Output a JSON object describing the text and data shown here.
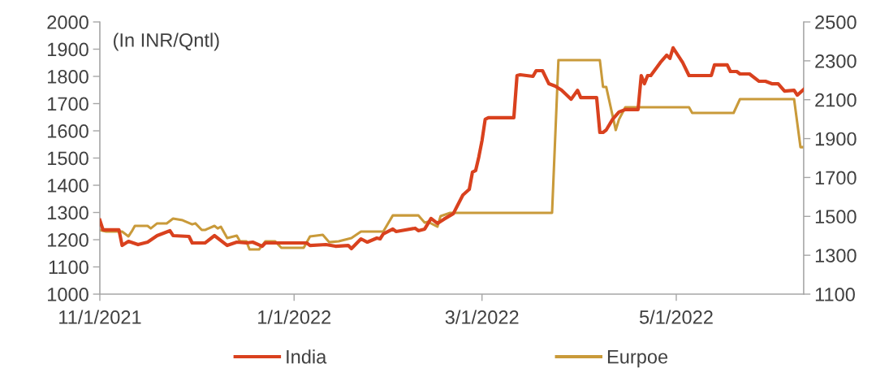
{
  "chart_data": {
    "type": "line",
    "annotations": [
      "(In INR/Qntl)"
    ],
    "xlim": [
      "2021-11-01",
      "2022-06-10"
    ],
    "xticks": [
      {
        "value": "2021-11-01",
        "label": "11/1/2021"
      },
      {
        "value": "2022-01-01",
        "label": "1/1/2022"
      },
      {
        "value": "2022-03-01",
        "label": "3/1/2022"
      },
      {
        "value": "2022-05-01",
        "label": "5/1/2022"
      }
    ],
    "ylim": [
      1000,
      2000
    ],
    "yticks": [
      1000,
      1100,
      1200,
      1300,
      1400,
      1500,
      1600,
      1700,
      1800,
      1900,
      2000
    ],
    "y2lim": [
      1100,
      2500
    ],
    "y2ticks": [
      1100,
      1300,
      1500,
      1700,
      1900,
      2100,
      2300,
      2500
    ],
    "grid": false,
    "legend": "bottom",
    "marker": "none",
    "line_style": "solid",
    "series": [
      {
        "name": "India",
        "color": "#d9411e",
        "x": [
          "2021-11-01",
          "2021-11-02",
          "2021-11-07",
          "2021-11-08",
          "2021-11-10",
          "2021-11-13",
          "2021-11-16",
          "2021-11-19",
          "2021-11-23",
          "2021-11-24",
          "2021-11-29",
          "2021-11-30",
          "2021-12-04",
          "2021-12-07",
          "2021-12-11",
          "2021-12-14",
          "2021-12-17",
          "2021-12-19",
          "2021-12-22",
          "2021-12-23",
          "2022-01-05",
          "2022-01-06",
          "2022-01-11",
          "2022-01-14",
          "2022-01-18",
          "2022-01-19",
          "2022-01-22",
          "2022-01-24",
          "2022-01-27",
          "2022-01-28",
          "2022-01-29",
          "2022-02-01",
          "2022-02-02",
          "2022-02-08",
          "2022-02-09",
          "2022-02-11",
          "2022-02-13",
          "2022-02-15",
          "2022-02-17",
          "2022-02-20",
          "2022-02-23",
          "2022-02-25",
          "2022-02-26",
          "2022-02-27",
          "2022-02-28",
          "2022-03-01",
          "2022-03-02",
          "2022-03-03",
          "2022-03-11",
          "2022-03-12",
          "2022-03-13",
          "2022-03-17",
          "2022-03-18",
          "2022-03-20",
          "2022-03-22",
          "2022-03-24",
          "2022-03-26",
          "2022-03-29",
          "2022-03-31",
          "2022-04-01",
          "2022-04-06",
          "2022-04-07",
          "2022-04-08",
          "2022-04-09",
          "2022-04-11",
          "2022-04-13",
          "2022-04-15",
          "2022-04-19",
          "2022-04-20",
          "2022-04-21",
          "2022-04-22",
          "2022-04-23",
          "2022-04-26",
          "2022-04-28",
          "2022-04-29",
          "2022-04-30",
          "2022-05-03",
          "2022-05-05",
          "2022-05-12",
          "2022-05-13",
          "2022-05-17",
          "2022-05-18",
          "2022-05-20",
          "2022-05-21",
          "2022-05-24",
          "2022-05-27",
          "2022-05-29",
          "2022-05-31",
          "2022-06-02",
          "2022-06-04",
          "2022-06-07",
          "2022-06-08",
          "2022-06-10"
        ],
        "values": [
          1272,
          1236,
          1236,
          1179,
          1194,
          1182,
          1191,
          1215,
          1233,
          1215,
          1212,
          1188,
          1188,
          1215,
          1179,
          1191,
          1188,
          1191,
          1176,
          1188,
          1188,
          1179,
          1182,
          1176,
          1179,
          1167,
          1203,
          1191,
          1206,
          1203,
          1221,
          1239,
          1230,
          1242,
          1233,
          1239,
          1278,
          1260,
          1275,
          1296,
          1364,
          1385,
          1448,
          1454,
          1504,
          1564,
          1642,
          1648,
          1648,
          1803,
          1806,
          1800,
          1821,
          1821,
          1773,
          1764,
          1749,
          1716,
          1749,
          1722,
          1722,
          1594,
          1594,
          1603,
          1642,
          1669,
          1678,
          1678,
          1803,
          1773,
          1803,
          1803,
          1851,
          1878,
          1866,
          1905,
          1851,
          1803,
          1803,
          1842,
          1842,
          1818,
          1818,
          1809,
          1809,
          1782,
          1782,
          1773,
          1773,
          1746,
          1749,
          1731,
          1752
        ]
      },
      {
        "name": "Eurpoe",
        "color": "#c99a3a",
        "axis": "y2",
        "x": [
          "2021-11-01",
          "2021-11-03",
          "2021-11-08",
          "2021-11-10",
          "2021-11-11",
          "2021-11-12",
          "2021-11-16",
          "2021-11-17",
          "2021-11-19",
          "2021-11-22",
          "2021-11-24",
          "2021-11-27",
          "2021-11-30",
          "2021-12-01",
          "2021-12-03",
          "2021-12-04",
          "2021-12-07",
          "2021-12-08",
          "2021-12-09",
          "2021-12-11",
          "2021-12-14",
          "2021-12-15",
          "2021-12-17",
          "2021-12-18",
          "2021-12-21",
          "2021-12-23",
          "2021-12-26",
          "2021-12-28",
          "2022-01-04",
          "2022-01-06",
          "2022-01-10",
          "2022-01-12",
          "2022-01-15",
          "2022-01-19",
          "2022-01-22",
          "2022-01-29",
          "2022-02-01",
          "2022-02-09",
          "2022-02-11",
          "2022-02-12",
          "2022-02-15",
          "2022-02-16",
          "2022-02-19",
          "2022-02-23",
          "2022-03-23",
          "2022-03-25",
          "2022-04-07",
          "2022-04-08",
          "2022-04-09",
          "2022-04-12",
          "2022-04-13",
          "2022-04-15",
          "2022-05-05",
          "2022-05-06",
          "2022-05-19",
          "2022-05-21",
          "2022-06-07",
          "2022-06-09",
          "2022-06-10"
        ],
        "values": [
          1430,
          1422,
          1422,
          1397,
          1422,
          1451,
          1451,
          1438,
          1464,
          1464,
          1489,
          1480,
          1459,
          1464,
          1430,
          1430,
          1451,
          1438,
          1447,
          1388,
          1401,
          1372,
          1372,
          1330,
          1330,
          1372,
          1372,
          1338,
          1338,
          1397,
          1405,
          1367,
          1372,
          1388,
          1422,
          1422,
          1505,
          1505,
          1468,
          1472,
          1447,
          1501,
          1518,
          1518,
          1518,
          2304,
          2304,
          2166,
          2166,
          1944,
          1998,
          2061,
          2061,
          2032,
          2032,
          2103,
          2103,
          1856,
          1856
        ]
      }
    ]
  }
}
